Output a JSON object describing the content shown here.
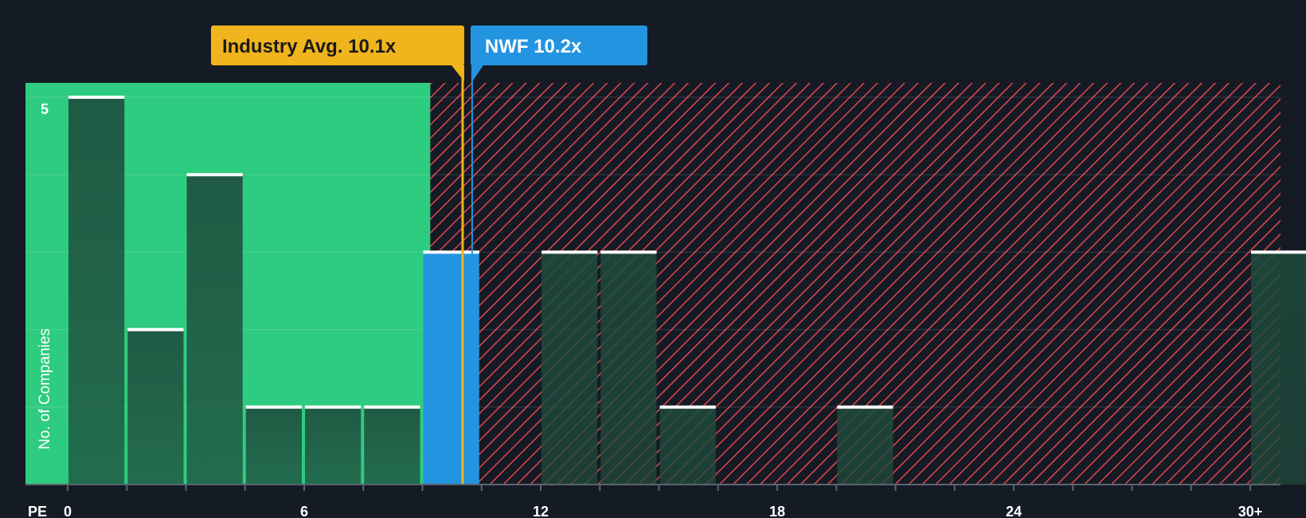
{
  "chart_data": {
    "type": "bar",
    "title": "",
    "xlabel": "PE",
    "ylabel": "No. of Companies",
    "x_ticks": [
      "0",
      "6",
      "12",
      "18",
      "24",
      "30+"
    ],
    "y_ticks": [
      "5"
    ],
    "ylim": [
      0,
      5
    ],
    "xlim": [
      -1,
      30.8
    ],
    "bin_width": 1.5,
    "bins": [
      {
        "x_start": 0,
        "count": 5,
        "group": "peer"
      },
      {
        "x_start": 1.5,
        "count": 2,
        "group": "peer"
      },
      {
        "x_start": 3,
        "count": 4,
        "group": "peer"
      },
      {
        "x_start": 4.5,
        "count": 1,
        "group": "peer"
      },
      {
        "x_start": 6,
        "count": 1,
        "group": "peer"
      },
      {
        "x_start": 7.5,
        "count": 1,
        "group": "peer"
      },
      {
        "x_start": 9,
        "count": 3,
        "group": "highlight"
      },
      {
        "x_start": 12,
        "count": 3,
        "group": "peer"
      },
      {
        "x_start": 13.5,
        "count": 3,
        "group": "peer"
      },
      {
        "x_start": 15,
        "count": 1,
        "group": "peer"
      },
      {
        "x_start": 19.5,
        "count": 1,
        "group": "peer"
      },
      {
        "x_start": 30,
        "count": 3,
        "group": "peer"
      }
    ],
    "industry_avg": {
      "label": "Industry Avg. 10.1x",
      "value": 10.1
    },
    "company": {
      "label": "NWF 10.2x",
      "value": 10.2
    },
    "colors": {
      "background": "#151b24",
      "green_zone": "#2ecc80",
      "red_hatch": "#e0464d",
      "bar_dark": "#1e4a3c",
      "bar_highlight": "#2394e0",
      "industry": "#f0b41c",
      "company": "#2394e0"
    }
  }
}
